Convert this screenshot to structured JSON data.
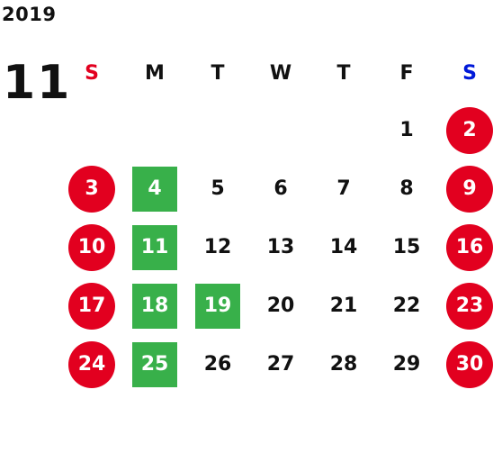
{
  "header": {
    "year": "2019",
    "month": "11"
  },
  "colors": {
    "weekend_circle": "#e2001f",
    "highlight_box": "#38b04a",
    "sunday_label": "#e2001f",
    "saturday_label": "#0019d9",
    "text": "#111111"
  },
  "weekdays": [
    "S",
    "M",
    "T",
    "W",
    "T",
    "F",
    "S"
  ],
  "weeks": [
    [
      {
        "day": ""
      },
      {
        "day": ""
      },
      {
        "day": ""
      },
      {
        "day": ""
      },
      {
        "day": ""
      },
      {
        "day": "1"
      },
      {
        "day": "2",
        "style": "weekend"
      }
    ],
    [
      {
        "day": "3",
        "style": "weekend"
      },
      {
        "day": "4",
        "style": "highlight"
      },
      {
        "day": "5"
      },
      {
        "day": "6"
      },
      {
        "day": "7"
      },
      {
        "day": "8"
      },
      {
        "day": "9",
        "style": "weekend"
      }
    ],
    [
      {
        "day": "10",
        "style": "weekend"
      },
      {
        "day": "11",
        "style": "highlight"
      },
      {
        "day": "12"
      },
      {
        "day": "13"
      },
      {
        "day": "14"
      },
      {
        "day": "15"
      },
      {
        "day": "16",
        "style": "weekend"
      }
    ],
    [
      {
        "day": "17",
        "style": "weekend"
      },
      {
        "day": "18",
        "style": "highlight"
      },
      {
        "day": "19",
        "style": "highlight"
      },
      {
        "day": "20"
      },
      {
        "day": "21"
      },
      {
        "day": "22"
      },
      {
        "day": "23",
        "style": "weekend"
      }
    ],
    [
      {
        "day": "24",
        "style": "weekend"
      },
      {
        "day": "25",
        "style": "highlight"
      },
      {
        "day": "26"
      },
      {
        "day": "27"
      },
      {
        "day": "28"
      },
      {
        "day": "29"
      },
      {
        "day": "30",
        "style": "weekend"
      }
    ]
  ]
}
